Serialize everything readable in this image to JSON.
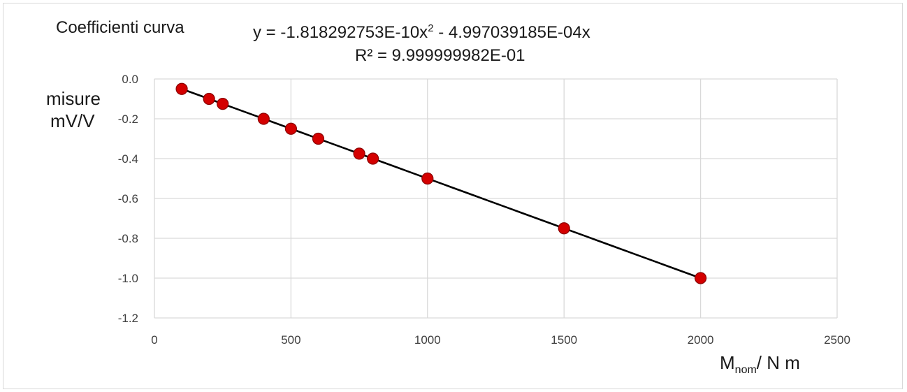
{
  "chart_data": {
    "type": "scatter",
    "title": "Coefficienti curva",
    "trendline": {
      "equation_prefix": "y = -1.818292753E-10x",
      "equation_sup": "2",
      "equation_suffix": " - 4.997039185E-04x",
      "r_squared": "R² = 9.999999982E-01",
      "a": -1.818292753e-10,
      "b": -0.0004997039185
    },
    "ylabel_line1": "misure",
    "ylabel_line2": "mV/V",
    "xlabel_main": "M",
    "xlabel_sub": "nom",
    "xlabel_rest": "/ N m",
    "xlim": [
      0,
      2500
    ],
    "ylim": [
      -1.2,
      0.0
    ],
    "xticks": [
      0,
      500,
      1000,
      1500,
      2000,
      2500
    ],
    "xtick_labels": [
      "0",
      "500",
      "1000",
      "1500",
      "2000",
      "2500"
    ],
    "yticks": [
      0.0,
      -0.2,
      -0.4,
      -0.6,
      -0.8,
      -1.0,
      -1.2
    ],
    "ytick_labels": [
      "0.0",
      "-0.2",
      "-0.4",
      "-0.6",
      "-0.8",
      "-1.0",
      "-1.2"
    ],
    "grid": true,
    "series": [
      {
        "points": [
          {
            "x": 100,
            "y": -0.05
          },
          {
            "x": 200,
            "y": -0.1
          },
          {
            "x": 250,
            "y": -0.125
          },
          {
            "x": 400,
            "y": -0.2
          },
          {
            "x": 500,
            "y": -0.25
          },
          {
            "x": 600,
            "y": -0.3
          },
          {
            "x": 750,
            "y": -0.375
          },
          {
            "x": 800,
            "y": -0.4
          },
          {
            "x": 1000,
            "y": -0.5
          },
          {
            "x": 1500,
            "y": -0.75
          },
          {
            "x": 2000,
            "y": -1.0
          }
        ]
      }
    ],
    "colors": {
      "marker_fill": "#d40000",
      "marker_edge": "#8b0000",
      "line": "#000000",
      "grid": "#d9d9d9"
    }
  }
}
